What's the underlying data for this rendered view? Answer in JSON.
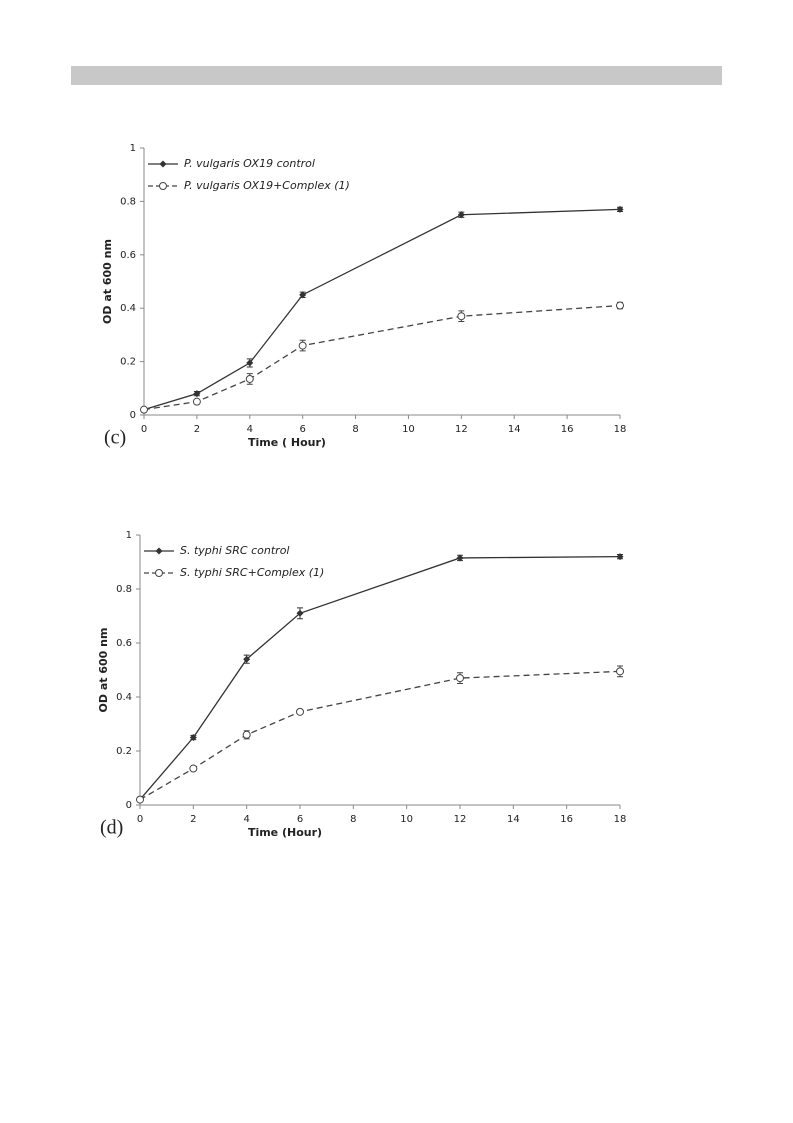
{
  "chart_data": [
    {
      "type": "line",
      "panel_label": "(c)",
      "x_label": "Time ( Hour)",
      "y_label": "OD at 600 nm",
      "x": [
        0,
        2,
        4,
        6,
        12,
        18
      ],
      "xlim": [
        0,
        18
      ],
      "xticks": [
        0,
        2,
        4,
        6,
        8,
        10,
        12,
        14,
        16,
        18
      ],
      "ylim": [
        0,
        1
      ],
      "yticks": [
        0,
        0.2,
        0.4,
        0.6,
        0.8,
        1
      ],
      "grid": false,
      "legend": "upper left",
      "series": [
        {
          "name": "P. vulgaris OX19 control",
          "color": "#333333",
          "style": "solid",
          "marker": "diamond",
          "values": [
            0.02,
            0.08,
            0.195,
            0.45,
            0.75,
            0.77
          ],
          "errors": [
            0.005,
            0.008,
            0.015,
            0.01,
            0.01,
            0.008
          ]
        },
        {
          "name": "P. vulgaris OX19+Complex (1)",
          "color": "#444444",
          "style": "dashed",
          "marker": "circle",
          "values": [
            0.02,
            0.05,
            0.135,
            0.26,
            0.37,
            0.41
          ],
          "errors": [
            0.005,
            0.005,
            0.02,
            0.02,
            0.02,
            0.012
          ]
        }
      ]
    },
    {
      "type": "line",
      "panel_label": "(d)",
      "x_label": "Time (Hour)",
      "y_label": "OD at 600 nm",
      "x": [
        0,
        2,
        4,
        6,
        12,
        18
      ],
      "xlim": [
        0,
        18
      ],
      "xticks": [
        0,
        2,
        4,
        6,
        8,
        10,
        12,
        14,
        16,
        18
      ],
      "ylim": [
        0,
        1
      ],
      "yticks": [
        0,
        0.2,
        0.4,
        0.6,
        0.8,
        1
      ],
      "grid": false,
      "legend": "upper left",
      "series": [
        {
          "name": "S. typhi SRC control",
          "color": "#333333",
          "style": "solid",
          "marker": "diamond",
          "values": [
            0.02,
            0.25,
            0.54,
            0.71,
            0.915,
            0.92
          ],
          "errors": [
            0.005,
            0.008,
            0.015,
            0.02,
            0.01,
            0.008
          ]
        },
        {
          "name": "S. typhi SRC+Complex (1)",
          "color": "#444444",
          "style": "dashed",
          "marker": "circle",
          "values": [
            0.02,
            0.135,
            0.26,
            0.345,
            0.47,
            0.495
          ],
          "errors": [
            0.005,
            0.005,
            0.015,
            0.008,
            0.02,
            0.02
          ]
        }
      ]
    }
  ]
}
